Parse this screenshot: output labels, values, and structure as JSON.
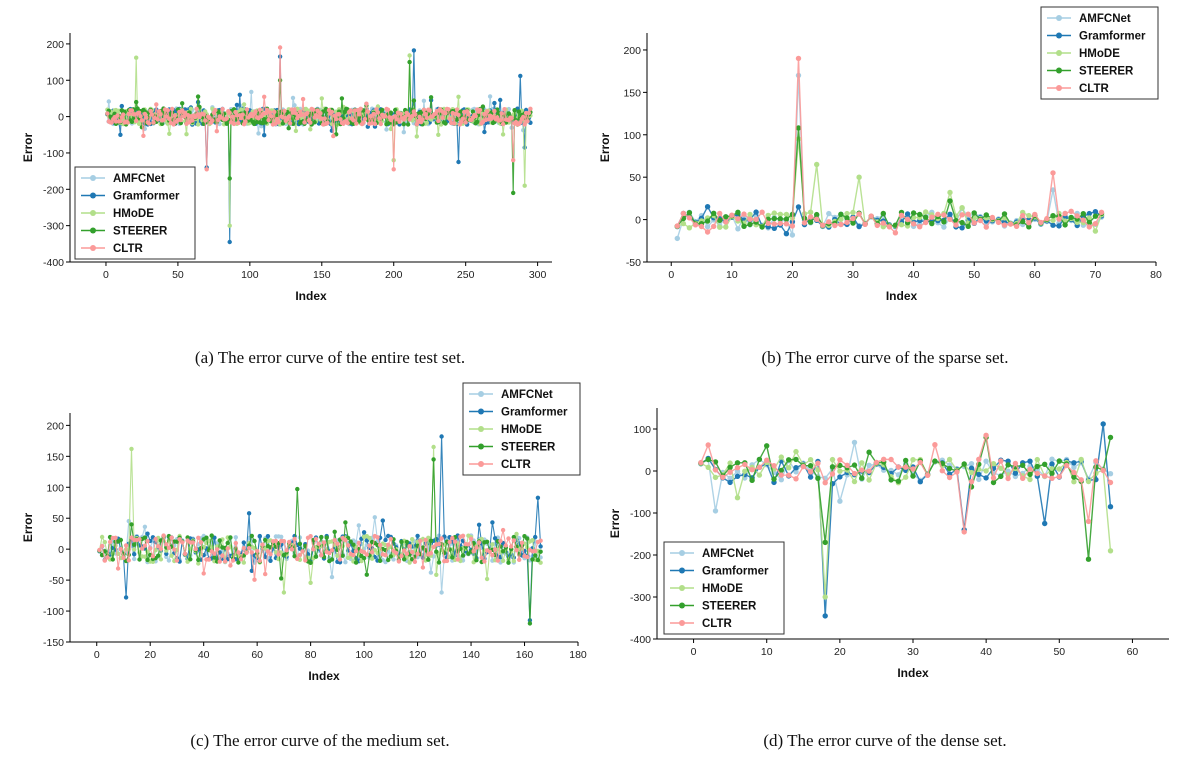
{
  "series_styles": [
    {
      "name": "AMFCNet",
      "color": "#a6cee3"
    },
    {
      "name": "Gramformer",
      "color": "#1f78b4"
    },
    {
      "name": "HMoDE",
      "color": "#b2df8a"
    },
    {
      "name": "STEERER",
      "color": "#33a02c"
    },
    {
      "name": "CLTR",
      "color": "#fb9a99"
    }
  ],
  "chart_data": [
    {
      "type": "line",
      "caption": "(a) The error curve of the entire test set.",
      "xlabel": "Index",
      "ylabel": "Error",
      "xlim": [
        -25,
        310
      ],
      "ylim": [
        -400,
        230
      ],
      "xticks": [
        0,
        50,
        100,
        150,
        200,
        250,
        300
      ],
      "yticks": [
        -400,
        -300,
        -200,
        -100,
        0,
        100,
        200
      ],
      "legend": "bottom-left",
      "n_points": 295,
      "spikes": [
        {
          "x": 21,
          "values": {
            "HMoDE": 162,
            "STEERER": 40
          }
        },
        {
          "x": 64,
          "values": {
            "Gramformer": 40,
            "STEERER": 55
          }
        },
        {
          "x": 70,
          "values": {
            "CLTR": -145,
            "Gramformer": -140
          }
        },
        {
          "x": 86,
          "values": {
            "Gramformer": -345,
            "HMoDE": -300,
            "STEERER": -170
          }
        },
        {
          "x": 93,
          "values": {
            "Gramformer": 60
          }
        },
        {
          "x": 101,
          "values": {
            "AMFCNet": 68
          }
        },
        {
          "x": 121,
          "values": {
            "CLTR": 190,
            "Gramformer": 165,
            "STEERER": 100
          }
        },
        {
          "x": 150,
          "values": {
            "HMoDE": 50
          }
        },
        {
          "x": 200,
          "values": {
            "CLTR": -145,
            "HMoDE": -120
          }
        },
        {
          "x": 211,
          "values": {
            "HMoDE": 168,
            "STEERER": 150
          }
        },
        {
          "x": 214,
          "values": {
            "Gramformer": 182
          }
        },
        {
          "x": 245,
          "values": {
            "Gramformer": -125
          }
        },
        {
          "x": 283,
          "values": {
            "STEERER": -210,
            "CLTR": -120
          }
        },
        {
          "x": 288,
          "values": {
            "Gramformer": 112
          }
        },
        {
          "x": 291,
          "values": {
            "HMoDE": -190,
            "Gramformer": -85
          }
        }
      ]
    },
    {
      "type": "line",
      "caption": "(b) The error curve of the sparse set.",
      "xlabel": "Index",
      "ylabel": "Error",
      "xlim": [
        -4,
        80
      ],
      "ylim": [
        -50,
        220
      ],
      "xticks": [
        0,
        10,
        20,
        30,
        40,
        50,
        60,
        70,
        80
      ],
      "yticks": [
        -50,
        0,
        50,
        100,
        150,
        200
      ],
      "legend": "top-right",
      "n_points": 71,
      "spikes": [
        {
          "x": 21,
          "values": {
            "CLTR": 190,
            "AMFCNet": 170,
            "STEERER": 108,
            "HMoDE": 95,
            "Gramformer": 15
          }
        },
        {
          "x": 24,
          "values": {
            "HMoDE": 65
          }
        },
        {
          "x": 31,
          "values": {
            "HMoDE": 50
          }
        },
        {
          "x": 46,
          "values": {
            "HMoDE": 32,
            "STEERER": 22
          }
        },
        {
          "x": 63,
          "values": {
            "CLTR": 55,
            "AMFCNet": 35
          }
        }
      ]
    },
    {
      "type": "line",
      "caption": "(c) The error curve of the medium set.",
      "xlabel": "Index",
      "ylabel": "Error",
      "xlim": [
        -10,
        180
      ],
      "ylim": [
        -150,
        220
      ],
      "xticks": [
        0,
        20,
        40,
        60,
        80,
        100,
        120,
        140,
        160,
        180
      ],
      "yticks": [
        -150,
        -100,
        -50,
        0,
        50,
        100,
        150,
        200
      ],
      "legend": "top-right",
      "n_points": 166,
      "spikes": [
        {
          "x": 11,
          "values": {
            "Gramformer": -78
          }
        },
        {
          "x": 13,
          "values": {
            "HMoDE": 162,
            "STEERER": 40
          }
        },
        {
          "x": 57,
          "values": {
            "Gramformer": 58
          }
        },
        {
          "x": 70,
          "values": {
            "HMoDE": -70
          }
        },
        {
          "x": 75,
          "values": {
            "STEERER": 97
          }
        },
        {
          "x": 126,
          "values": {
            "HMoDE": 165,
            "STEERER": 145
          }
        },
        {
          "x": 129,
          "values": {
            "Gramformer": 182,
            "AMFCNet": -70
          }
        },
        {
          "x": 162,
          "values": {
            "STEERER": -120,
            "Gramformer": -115
          }
        },
        {
          "x": 165,
          "values": {
            "Gramformer": 83
          }
        }
      ]
    },
    {
      "type": "line",
      "caption": "(d) The error curve of the dense set.",
      "xlabel": "Index",
      "ylabel": "Error",
      "xlim": [
        -5,
        65
      ],
      "ylim": [
        -400,
        150
      ],
      "xticks": [
        0,
        10,
        20,
        30,
        40,
        50,
        60
      ],
      "yticks": [
        -400,
        -300,
        -200,
        -100,
        0,
        100
      ],
      "legend": "bottom-left",
      "n_points": 57,
      "spikes": [
        {
          "x": 2,
          "values": {
            "CLTR": 62,
            "Gramformer": 30
          }
        },
        {
          "x": 3,
          "values": {
            "AMFCNet": -95
          }
        },
        {
          "x": 18,
          "values": {
            "Gramformer": -345,
            "HMoDE": -300,
            "STEERER": -170
          }
        },
        {
          "x": 22,
          "values": {
            "AMFCNet": 68
          }
        },
        {
          "x": 37,
          "values": {
            "CLTR": -145,
            "Gramformer": -140
          }
        },
        {
          "x": 40,
          "values": {
            "CLTR": 85,
            "STEERER": 80
          }
        },
        {
          "x": 48,
          "values": {
            "Gramformer": -125
          }
        },
        {
          "x": 54,
          "values": {
            "STEERER": -210,
            "CLTR": -120
          }
        },
        {
          "x": 56,
          "values": {
            "Gramformer": 112
          }
        },
        {
          "x": 57,
          "values": {
            "HMoDE": -190,
            "Gramformer": -85,
            "STEERER": 80
          }
        }
      ]
    }
  ]
}
